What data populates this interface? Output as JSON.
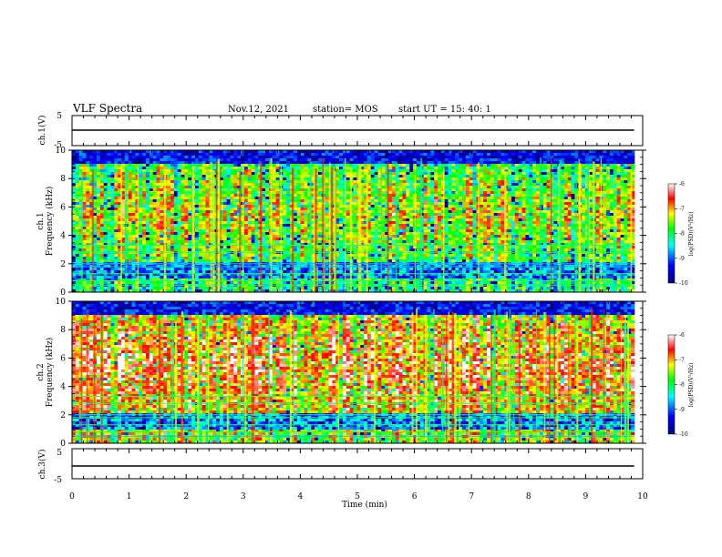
{
  "header": {
    "title": "VLF Spectra",
    "date": "Nov.12, 2021",
    "station": "station= MOS",
    "start": "start  UT =   15: 40: 1"
  },
  "chart_data": [
    {
      "type": "line",
      "name": "ch1-voltage",
      "ylabel": "ch.1(V)",
      "ylim": [
        -5,
        5
      ],
      "yticks": [
        5,
        -5
      ],
      "xlim": [
        0,
        10
      ],
      "x": [
        0,
        9.85
      ],
      "values": [
        0,
        0
      ]
    },
    {
      "type": "heatmap",
      "name": "ch1-spectrogram",
      "ylabel": "ch.1",
      "ylabel2": "Frequency (kHz)",
      "ylim": [
        0,
        10
      ],
      "yticks": [
        0,
        2,
        4,
        6,
        8,
        10
      ],
      "xlim": [
        0,
        10
      ],
      "data_end_min": 9.85,
      "colorbar": {
        "label": "log(PSD)(V²/Hz)",
        "range": [
          -10,
          -6
        ],
        "ticks": [
          "-6",
          "-7",
          "-8",
          "-9",
          "-10"
        ]
      }
    },
    {
      "type": "heatmap",
      "name": "ch2-spectrogram",
      "ylabel": "ch.2",
      "ylabel2": "Frequency (kHz)",
      "ylim": [
        0,
        10
      ],
      "yticks": [
        0,
        2,
        4,
        6,
        8,
        10
      ],
      "xlim": [
        0,
        10
      ],
      "data_end_min": 9.85,
      "colorbar": {
        "label": "log(PSD)(V²/Hz)",
        "range": [
          -10,
          -6
        ],
        "ticks": [
          "-6",
          "-7",
          "-8",
          "-9",
          "-10"
        ]
      }
    },
    {
      "type": "line",
      "name": "ch3-voltage",
      "ylabel": "ch.3(V)",
      "ylim": [
        -5,
        5
      ],
      "yticks": [
        5,
        -5
      ],
      "xlim": [
        0,
        10
      ],
      "x": [
        0,
        9.85
      ],
      "values": [
        0,
        0
      ]
    }
  ],
  "xaxis": {
    "label": "Time (min)",
    "ticks": [
      "0",
      "1",
      "2",
      "3",
      "4",
      "5",
      "6",
      "7",
      "8",
      "9",
      "10"
    ]
  },
  "colors": {
    "jet": [
      "#00007f",
      "#0000ff",
      "#00ffff",
      "#7fff00",
      "#ffff00",
      "#ff0000",
      "#ffffff"
    ]
  }
}
